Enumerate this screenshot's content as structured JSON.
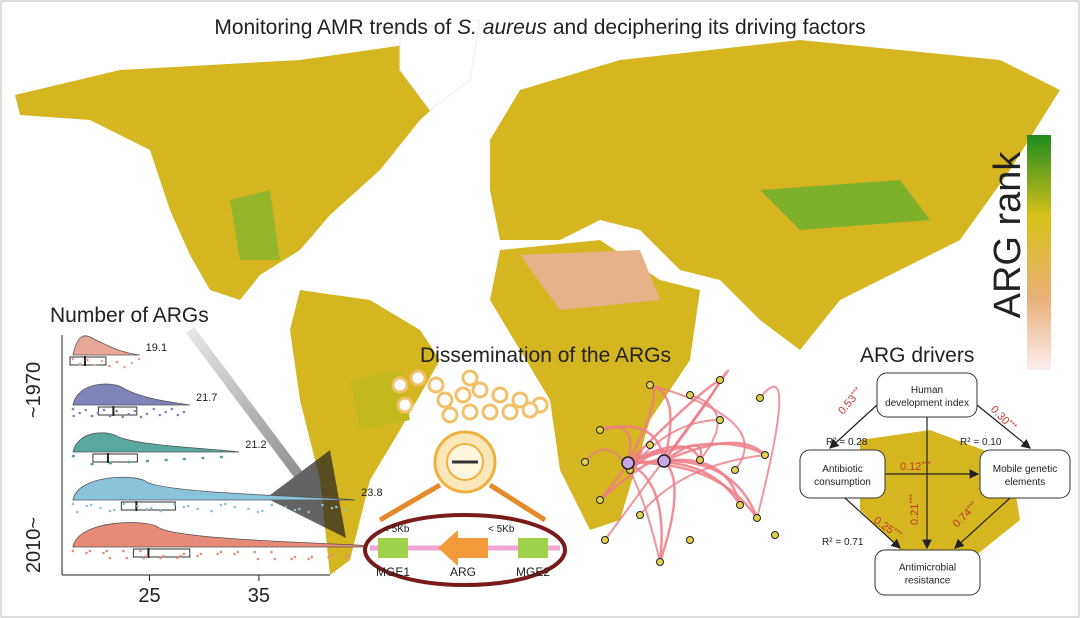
{
  "title": {
    "pre": "Monitoring AMR trends of ",
    "species": "S. aureus",
    "post": " and deciphering its driving factors"
  },
  "legend": {
    "label": "ARG rank"
  },
  "arg_count": {
    "title": "Number of ARGs",
    "period_start": "~1970",
    "period_end": "2010~",
    "xlim": [
      17,
      41.5
    ],
    "xticks": [
      25,
      35
    ],
    "values": [
      19.1,
      21.7,
      21.2,
      23.8,
      24.9
    ],
    "colors": [
      "#e8a898",
      "#7f84b8",
      "#5aa7a0",
      "#8cc3dc",
      "#e58b78"
    ]
  },
  "dissemination": {
    "title": "Dissemination of the ARGs",
    "distance_left": "< 5Kb",
    "distance_right": "< 5Kb",
    "genes": [
      "MGE1",
      "ARG",
      "MGE2"
    ]
  },
  "drivers": {
    "title": "ARG drivers",
    "nodes": [
      [
        "Human",
        "development index"
      ],
      [
        "Antibiotic",
        "consumption"
      ],
      [
        "Mobile genetic",
        "elements"
      ],
      [
        "Antimicrobial",
        "resistance"
      ]
    ],
    "edges": [
      {
        "label": "0.53",
        "significance": "***"
      },
      {
        "label": "0.30",
        "significance": "***"
      },
      {
        "label": "0.12",
        "significance": "***"
      },
      {
        "label": "0.25",
        "significance": "***"
      },
      {
        "label": "0.21",
        "significance": "***"
      },
      {
        "label": "0.74",
        "significance": "***"
      }
    ],
    "r_squared": [
      "R² = 0.28",
      "R² = 0.10",
      "R² = 0.71"
    ]
  }
}
